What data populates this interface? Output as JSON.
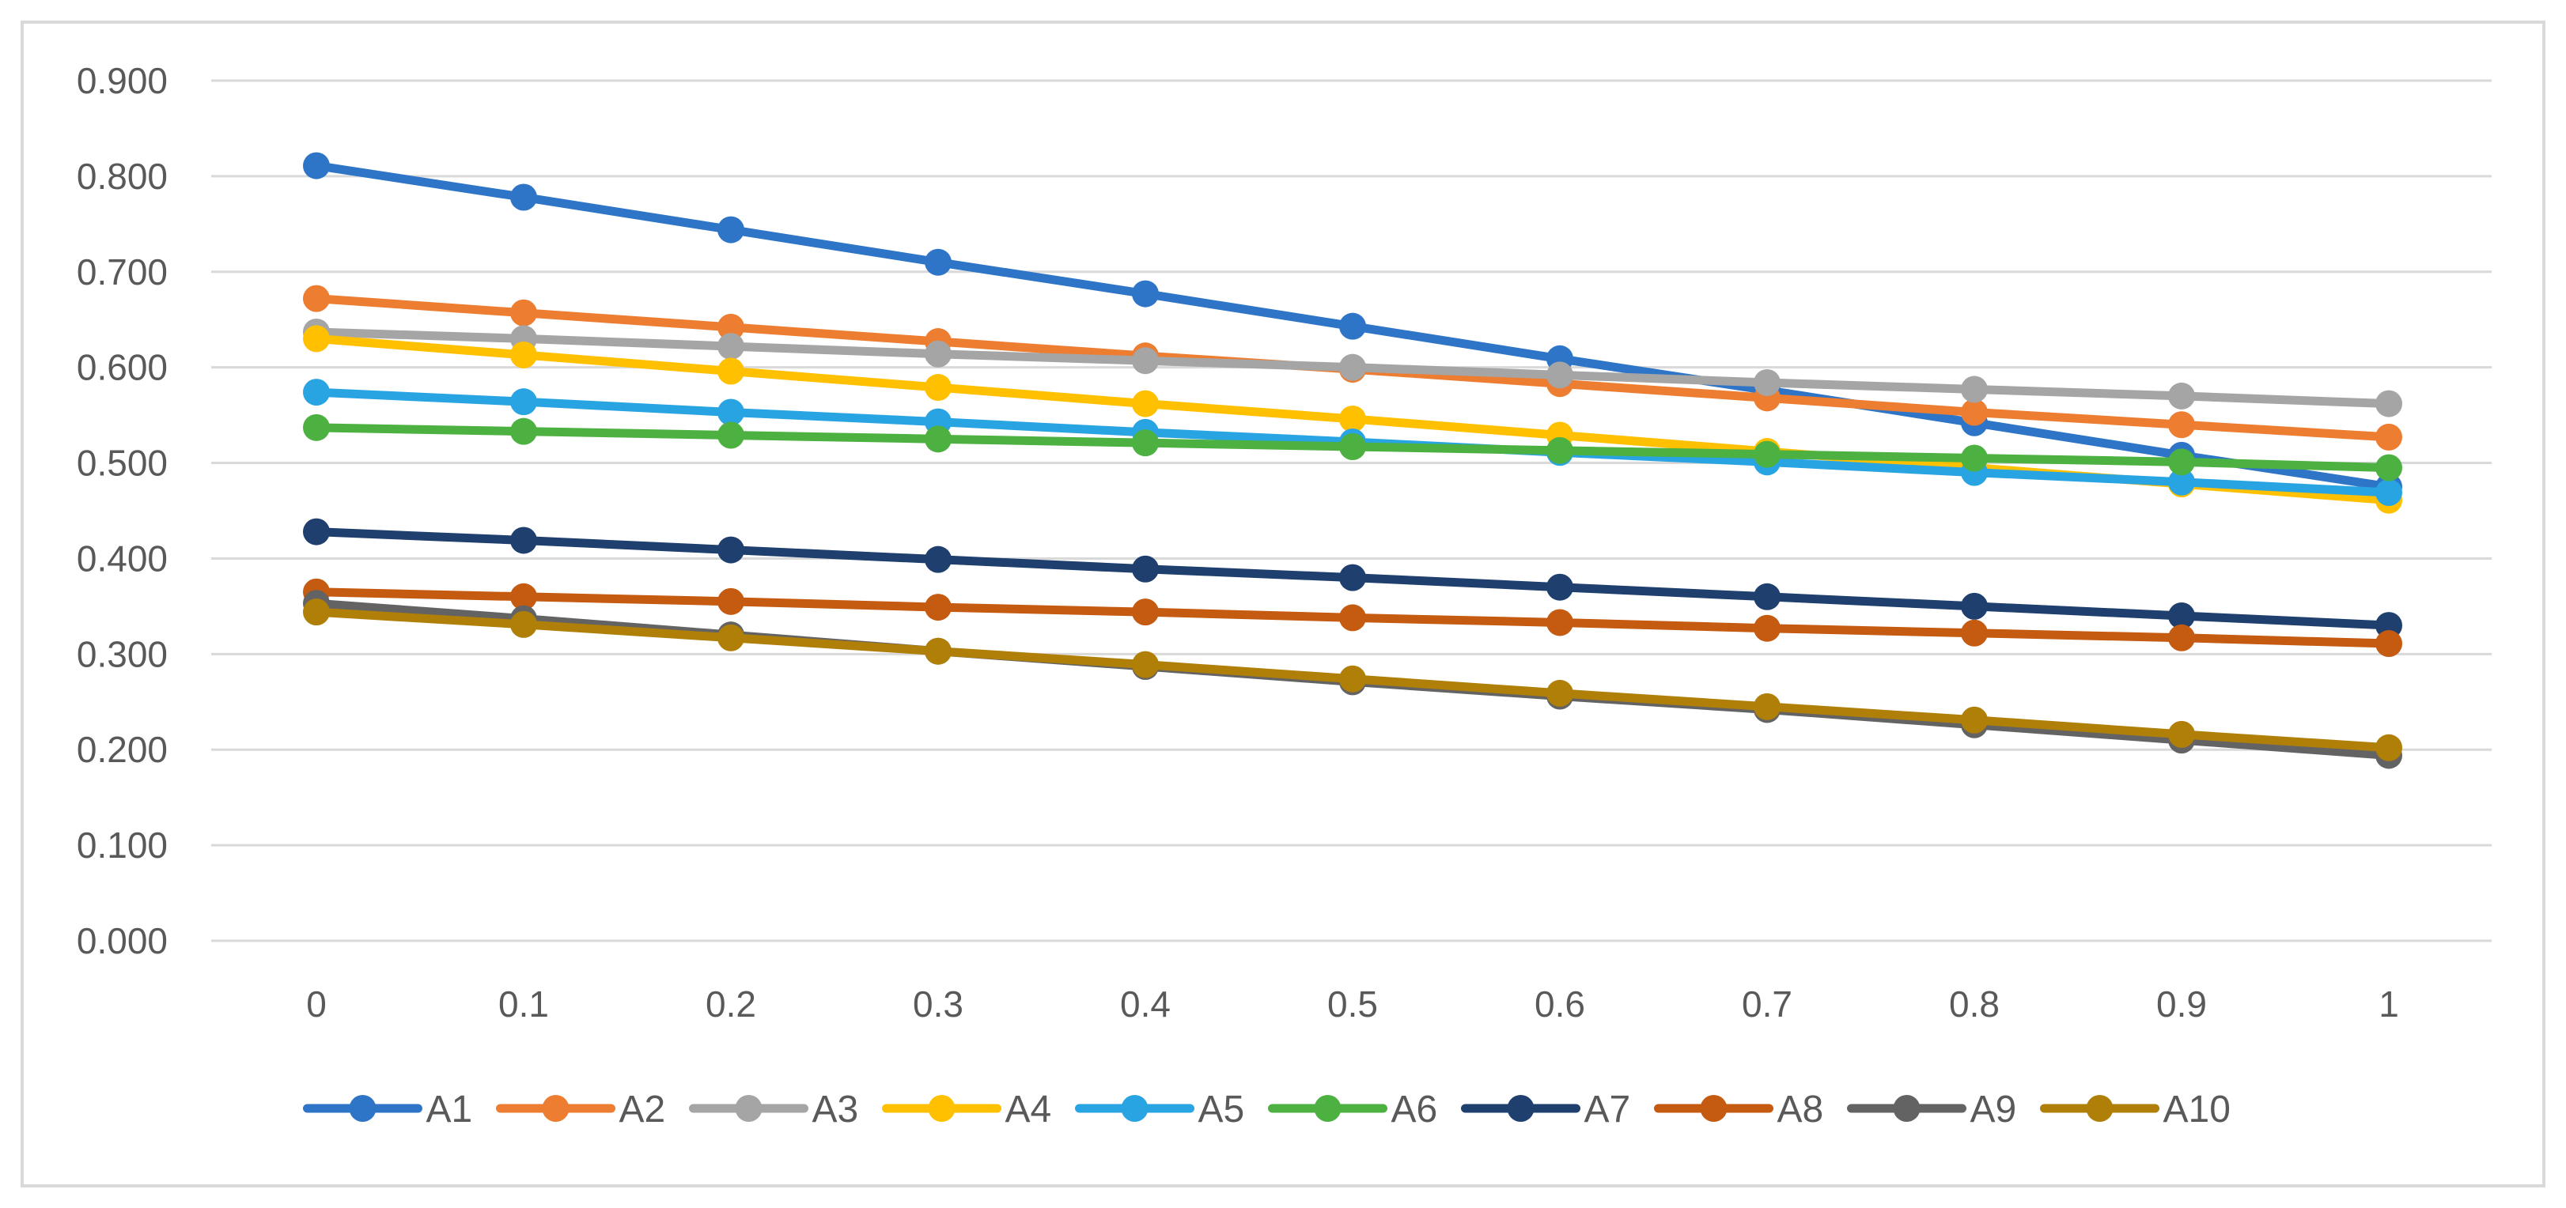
{
  "chart_data": {
    "type": "line",
    "title": "",
    "xlabel": "",
    "ylabel": "",
    "x": [
      "0",
      "0.1",
      "0.2",
      "0.3",
      "0.4",
      "0.5",
      "0.6",
      "0.7",
      "0.8",
      "0.9",
      "1"
    ],
    "ylim": [
      0,
      0.9
    ],
    "yticks": [
      "0.000",
      "0.100",
      "0.200",
      "0.300",
      "0.400",
      "0.500",
      "0.600",
      "0.700",
      "0.800",
      "0.900"
    ],
    "grid": true,
    "legend": "bottom",
    "series": [
      {
        "name": "A1",
        "color": "#2E75C8",
        "values": [
          0.811,
          0.778,
          0.744,
          0.71,
          0.677,
          0.643,
          0.609,
          0.576,
          0.542,
          0.508,
          0.475
        ]
      },
      {
        "name": "A2",
        "color": "#ED7D31",
        "values": [
          0.672,
          0.657,
          0.642,
          0.627,
          0.612,
          0.598,
          0.583,
          0.568,
          0.553,
          0.54,
          0.527
        ]
      },
      {
        "name": "A3",
        "color": "#A5A5A5",
        "values": [
          0.637,
          0.63,
          0.622,
          0.614,
          0.607,
          0.6,
          0.592,
          0.584,
          0.577,
          0.57,
          0.562
        ]
      },
      {
        "name": "A4",
        "color": "#FFC000",
        "values": [
          0.63,
          0.613,
          0.596,
          0.579,
          0.562,
          0.546,
          0.529,
          0.512,
          0.495,
          0.478,
          0.461
        ]
      },
      {
        "name": "A5",
        "color": "#29A4E3",
        "values": [
          0.574,
          0.564,
          0.553,
          0.543,
          0.532,
          0.522,
          0.511,
          0.501,
          0.49,
          0.48,
          0.469
        ]
      },
      {
        "name": "A6",
        "color": "#4CB140",
        "values": [
          0.537,
          0.533,
          0.529,
          0.525,
          0.521,
          0.517,
          0.513,
          0.509,
          0.505,
          0.501,
          0.495
        ]
      },
      {
        "name": "A7",
        "color": "#1F3F6E",
        "values": [
          0.428,
          0.419,
          0.409,
          0.399,
          0.389,
          0.38,
          0.37,
          0.36,
          0.35,
          0.34,
          0.33
        ]
      },
      {
        "name": "A8",
        "color": "#C55A11",
        "values": [
          0.365,
          0.36,
          0.355,
          0.349,
          0.344,
          0.338,
          0.333,
          0.327,
          0.322,
          0.317,
          0.311
        ]
      },
      {
        "name": "A9",
        "color": "#636363",
        "values": [
          0.353,
          0.337,
          0.32,
          0.303,
          0.287,
          0.271,
          0.256,
          0.242,
          0.226,
          0.21,
          0.194
        ]
      },
      {
        "name": "A10",
        "color": "#B07F08",
        "values": [
          0.344,
          0.331,
          0.317,
          0.303,
          0.289,
          0.274,
          0.259,
          0.245,
          0.231,
          0.216,
          0.202
        ]
      }
    ]
  }
}
